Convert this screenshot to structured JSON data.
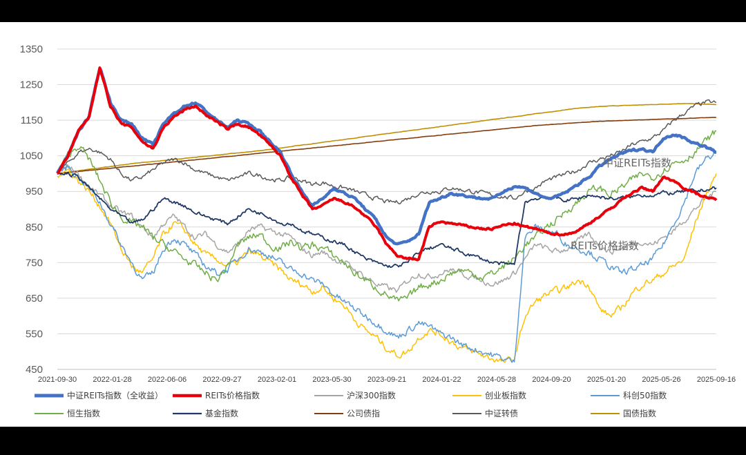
{
  "chart_data": {
    "type": "line",
    "ylim": [
      450,
      1350
    ],
    "yticks": [
      450,
      550,
      650,
      750,
      850,
      950,
      1050,
      1150,
      1250,
      1350
    ],
    "xticks": [
      "2021-09-30",
      "2022-01-28",
      "2022-06-06",
      "2022-09-27",
      "2023-02-01",
      "2023-05-30",
      "2023-09-21",
      "2024-01-22",
      "2024-05-28",
      "2024-09-20",
      "2025-01-20",
      "2025-05-26",
      "2025-09-16"
    ],
    "grid": true,
    "legend_position": "bottom",
    "annotations": [
      "中证REITs指数",
      "REITs价格指数"
    ],
    "series": [
      {
        "name": "中证REITs指数（全收益）",
        "color": "#4472C4",
        "width": 4.5,
        "vol": 5,
        "values": [
          1000,
          1050,
          1120,
          1160,
          1300,
          1200,
          1150,
          1140,
          1100,
          1080,
          1140,
          1170,
          1190,
          1200,
          1175,
          1150,
          1130,
          1150,
          1140,
          1120,
          1090,
          1060,
          1000,
          950,
          910,
          930,
          960,
          945,
          930,
          900,
          870,
          820,
          800,
          810,
          830,
          920,
          930,
          945,
          940,
          935,
          930,
          930,
          950,
          965,
          960,
          945,
          930,
          935,
          950,
          970,
          990,
          1020,
          1040,
          1055,
          1065,
          1070,
          1060,
          1100,
          1110,
          1100,
          1085,
          1075,
          1060
        ]
      },
      {
        "name": "REITs价格指数",
        "color": "#E8000B",
        "width": 4,
        "vol": 5,
        "values": [
          1000,
          1050,
          1120,
          1160,
          1300,
          1190,
          1140,
          1130,
          1090,
          1070,
          1130,
          1160,
          1180,
          1190,
          1165,
          1145,
          1125,
          1140,
          1130,
          1110,
          1080,
          1050,
          990,
          940,
          900,
          910,
          930,
          920,
          905,
          880,
          850,
          800,
          770,
          760,
          760,
          850,
          865,
          860,
          855,
          850,
          845,
          845,
          855,
          860,
          850,
          845,
          835,
          830,
          830,
          840,
          860,
          880,
          900,
          925,
          945,
          960,
          950,
          990,
          980,
          960,
          945,
          935,
          925
        ]
      },
      {
        "name": "沪深300指数",
        "color": "#A5A5A5",
        "width": 1.5,
        "vol": 14,
        "values": [
          1000,
          1020,
          1000,
          960,
          940,
          910,
          890,
          880,
          850,
          820,
          860,
          880,
          850,
          820,
          830,
          800,
          780,
          800,
          840,
          850,
          840,
          830,
          820,
          790,
          770,
          780,
          760,
          750,
          730,
          710,
          690,
          680,
          670,
          700,
          720,
          710,
          720,
          730,
          720,
          710,
          700,
          690,
          700,
          720,
          760,
          800,
          790,
          780,
          790,
          810,
          830,
          800,
          780,
          790,
          800,
          810,
          800,
          820,
          840,
          870,
          900,
          930,
          950
        ]
      },
      {
        "name": "创业板指数",
        "color": "#FFC000",
        "width": 1.5,
        "vol": 16,
        "values": [
          1000,
          1010,
          980,
          950,
          910,
          860,
          790,
          740,
          720,
          760,
          830,
          860,
          840,
          800,
          770,
          760,
          740,
          750,
          780,
          770,
          750,
          730,
          700,
          690,
          670,
          680,
          650,
          630,
          590,
          560,
          540,
          510,
          490,
          500,
          540,
          560,
          550,
          530,
          510,
          500,
          490,
          480,
          470,
          480,
          600,
          640,
          660,
          670,
          680,
          700,
          690,
          620,
          600,
          620,
          660,
          690,
          700,
          720,
          740,
          760,
          860,
          940,
          1000
        ]
      },
      {
        "name": "科创50指数",
        "color": "#5B9BD5",
        "width": 1.5,
        "vol": 16,
        "values": [
          1000,
          1020,
          990,
          960,
          920,
          860,
          800,
          750,
          700,
          720,
          790,
          820,
          800,
          770,
          740,
          720,
          730,
          760,
          790,
          780,
          770,
          750,
          730,
          720,
          700,
          690,
          660,
          640,
          620,
          600,
          580,
          560,
          540,
          560,
          580,
          570,
          550,
          540,
          520,
          510,
          500,
          490,
          480,
          470,
          820,
          850,
          840,
          830,
          800,
          790,
          780,
          760,
          740,
          720,
          730,
          740,
          760,
          800,
          860,
          920,
          1000,
          1040,
          1060
        ]
      },
      {
        "name": "恒生指数",
        "color": "#70AD47",
        "width": 1.5,
        "vol": 18,
        "values": [
          1000,
          1050,
          1080,
          1040,
          980,
          920,
          880,
          860,
          850,
          820,
          800,
          780,
          760,
          740,
          720,
          700,
          740,
          800,
          820,
          830,
          800,
          790,
          810,
          790,
          800,
          790,
          770,
          750,
          720,
          700,
          680,
          660,
          640,
          650,
          680,
          690,
          700,
          720,
          730,
          720,
          710,
          720,
          740,
          760,
          800,
          820,
          850,
          870,
          900,
          920,
          950,
          960,
          940,
          960,
          980,
          1000,
          990,
          1010,
          1030,
          1040,
          1060,
          1090,
          1120
        ]
      },
      {
        "name": "基金指数",
        "color": "#1F3864",
        "width": 1.8,
        "vol": 9,
        "values": [
          1000,
          1000,
          990,
          960,
          930,
          900,
          880,
          860,
          870,
          900,
          930,
          920,
          910,
          890,
          880,
          870,
          860,
          880,
          900,
          890,
          880,
          860,
          860,
          840,
          830,
          820,
          810,
          800,
          780,
          760,
          750,
          740,
          740,
          750,
          780,
          790,
          800,
          790,
          780,
          770,
          760,
          750,
          745,
          745,
          920,
          930,
          935,
          930,
          925,
          930,
          940,
          935,
          930,
          930,
          935,
          940,
          940,
          945,
          945,
          950,
          950,
          955,
          960
        ]
      },
      {
        "name": "公司债指",
        "color": "#843C0C",
        "width": 1.6,
        "vol": 0.6,
        "values": [
          1000,
          1003,
          1006,
          1009,
          1012,
          1015,
          1018,
          1021,
          1024,
          1027,
          1030,
          1033,
          1036,
          1039,
          1042,
          1045,
          1048,
          1051,
          1054,
          1057,
          1060,
          1063,
          1066,
          1069,
          1072,
          1075,
          1078,
          1081,
          1084,
          1087,
          1090,
          1093,
          1096,
          1099,
          1102,
          1105,
          1108,
          1111,
          1114,
          1117,
          1120,
          1123,
          1126,
          1129,
          1132,
          1135,
          1137,
          1139,
          1141,
          1143,
          1145,
          1147,
          1148,
          1149,
          1150,
          1151,
          1152,
          1153,
          1154,
          1155,
          1156,
          1157,
          1158
        ]
      },
      {
        "name": "中证转债",
        "color": "#595959",
        "width": 1.5,
        "vol": 10,
        "values": [
          1000,
          1030,
          1060,
          1070,
          1060,
          1040,
          1000,
          980,
          990,
          1010,
          1030,
          1040,
          1030,
          1010,
          1000,
          990,
          980,
          990,
          1000,
          995,
          985,
          980,
          990,
          980,
          970,
          975,
          965,
          960,
          950,
          940,
          930,
          920,
          920,
          930,
          945,
          950,
          950,
          960,
          955,
          950,
          945,
          940,
          935,
          930,
          950,
          960,
          980,
          990,
          1000,
          1010,
          1030,
          1040,
          1050,
          1060,
          1080,
          1090,
          1100,
          1120,
          1150,
          1170,
          1190,
          1200,
          1200
        ]
      },
      {
        "name": "国债指数",
        "color": "#BF8F00",
        "width": 1.6,
        "vol": 0.8,
        "values": [
          1000,
          1004,
          1008,
          1012,
          1016,
          1020,
          1024,
          1028,
          1031,
          1034,
          1037,
          1040,
          1043,
          1046,
          1049,
          1052,
          1055,
          1058,
          1061,
          1064,
          1068,
          1072,
          1076,
          1080,
          1084,
          1088,
          1092,
          1096,
          1100,
          1104,
          1108,
          1112,
          1116,
          1120,
          1124,
          1128,
          1132,
          1136,
          1140,
          1144,
          1148,
          1152,
          1156,
          1160,
          1164,
          1168,
          1172,
          1176,
          1180,
          1184,
          1186,
          1188,
          1190,
          1191,
          1192,
          1193,
          1194,
          1195,
          1196,
          1197,
          1196,
          1195,
          1194
        ]
      }
    ]
  }
}
